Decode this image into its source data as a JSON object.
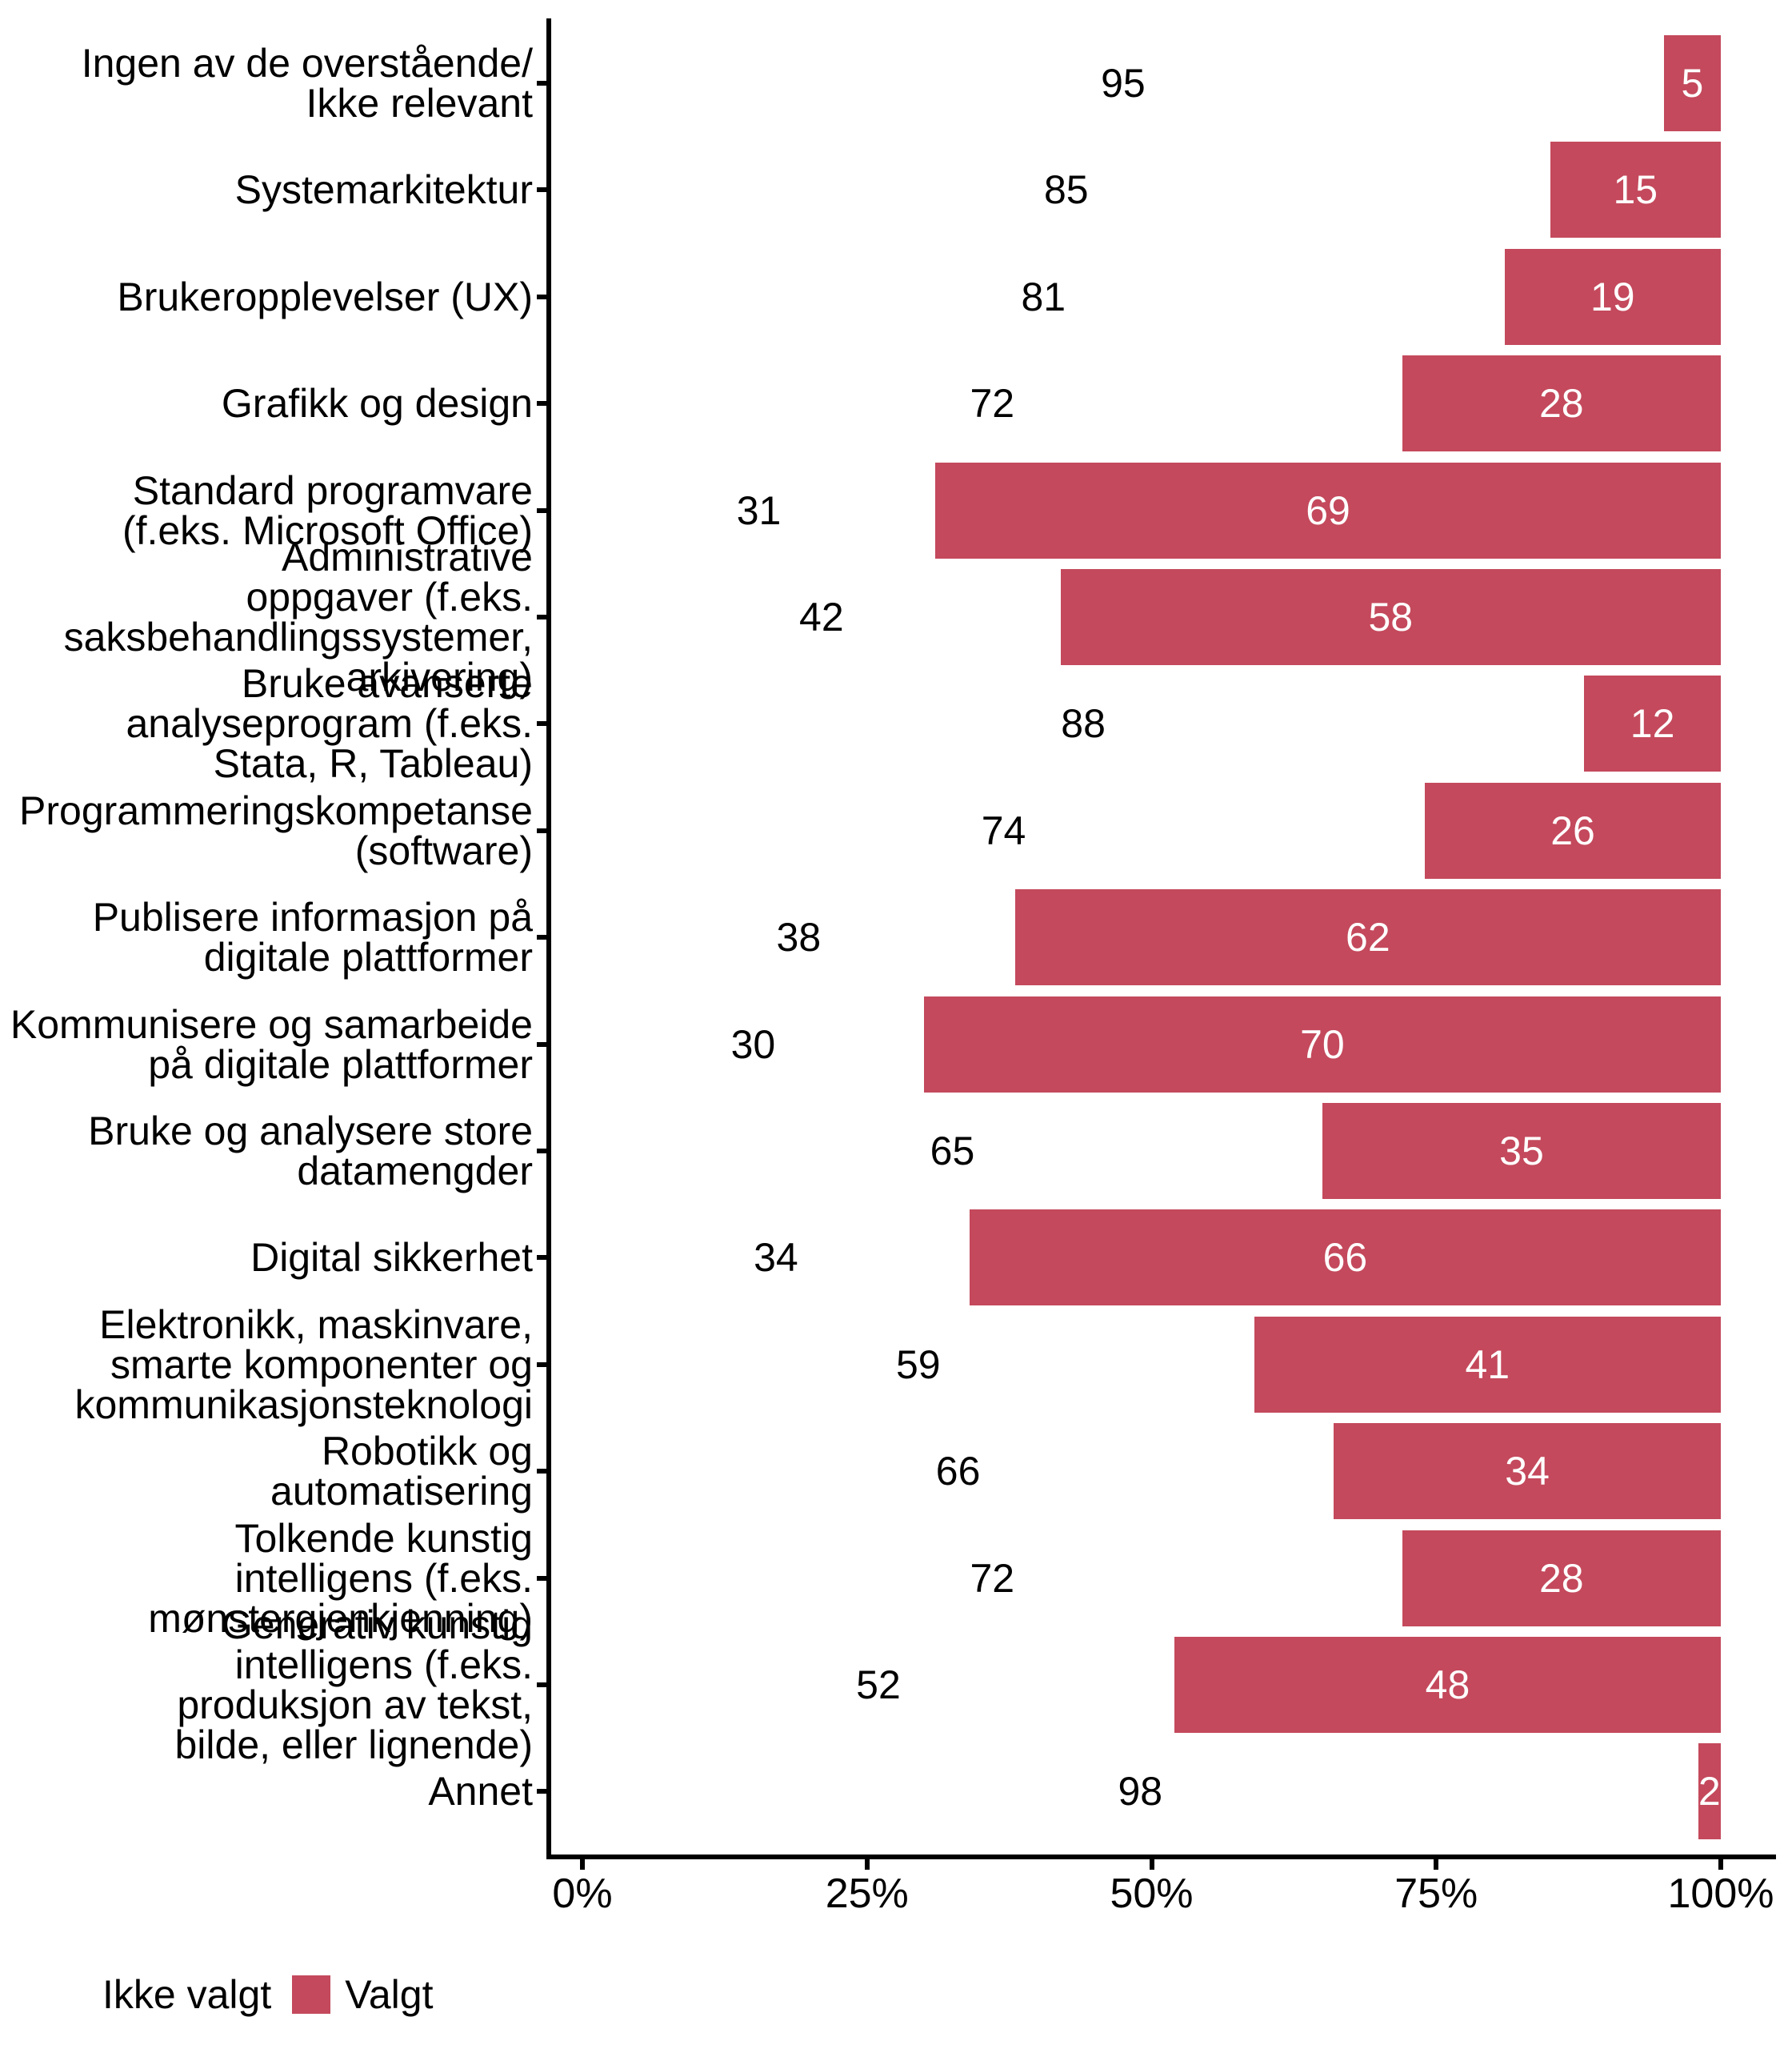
{
  "figure": {
    "background": "#FFFFFF"
  },
  "chart_data": {
    "type": "bar",
    "orientation": "horizontal",
    "stacked": true,
    "value_unit": "percent",
    "grid": false,
    "colors": {
      "not_selected_fill": "#FFFFFF",
      "selected_fill": "#C4495C",
      "not_selected_label": "#000000",
      "selected_label": "#FFFFFF",
      "axis": "#000000"
    },
    "categories": [
      {
        "lines": [
          "Ingen av de overstående/",
          "Ikke relevant"
        ]
      },
      {
        "lines": [
          "Systemarkitektur"
        ]
      },
      {
        "lines": [
          "Brukeropplevelser (UX)"
        ]
      },
      {
        "lines": [
          "Grafikk og design"
        ]
      },
      {
        "lines": [
          "Standard programvare",
          "(f.eks. Microsoft Office)"
        ]
      },
      {
        "lines": [
          "Administrative",
          "oppgaver (f.eks.",
          "saksbehandlingssystemer,",
          "arkivering)"
        ]
      },
      {
        "lines": [
          "Bruke avanserte",
          "analyseprogram (f.eks.",
          "Stata, R, Tableau)"
        ]
      },
      {
        "lines": [
          "Programmeringskompetanse",
          "(software)"
        ]
      },
      {
        "lines": [
          "Publisere informasjon på",
          "digitale plattformer"
        ]
      },
      {
        "lines": [
          "Kommunisere og samarbeide",
          "på digitale plattformer"
        ]
      },
      {
        "lines": [
          "Bruke og analysere store",
          "datamengder"
        ]
      },
      {
        "lines": [
          "Digital sikkerhet"
        ]
      },
      {
        "lines": [
          "Elektronikk, maskinvare,",
          "smarte komponenter og",
          "kommunikasjonsteknologi"
        ]
      },
      {
        "lines": [
          "Robotikk og",
          "automatisering"
        ]
      },
      {
        "lines": [
          "Tolkende kunstig",
          "intelligens (f.eks.",
          "mønstergjenkjenning)"
        ]
      },
      {
        "lines": [
          "Generativ kunstig",
          "intelligens (f.eks.",
          "produksjon av tekst,",
          "bilde, eller lignende)"
        ]
      },
      {
        "lines": [
          "Annet"
        ]
      }
    ],
    "series": [
      {
        "name": "Ikke valgt",
        "values": [
          95,
          85,
          81,
          72,
          31,
          42,
          88,
          74,
          38,
          30,
          65,
          34,
          59,
          66,
          72,
          52,
          98
        ]
      },
      {
        "name": "Valgt",
        "values": [
          5,
          15,
          19,
          28,
          69,
          58,
          12,
          26,
          62,
          70,
          35,
          66,
          41,
          34,
          28,
          48,
          2
        ]
      }
    ],
    "x_axis": {
      "range": [
        0,
        100
      ],
      "tick_values": [
        0,
        25,
        50,
        75,
        100
      ],
      "tick_labels": [
        "0%",
        "25%",
        "50%",
        "75%",
        "100%"
      ]
    },
    "legend": {
      "position": "bottom-left",
      "items": [
        {
          "label": "Ikke valgt",
          "swatch_color": "#FFFFFF"
        },
        {
          "label": "Valgt",
          "swatch_color": "#C4495C"
        }
      ]
    }
  }
}
